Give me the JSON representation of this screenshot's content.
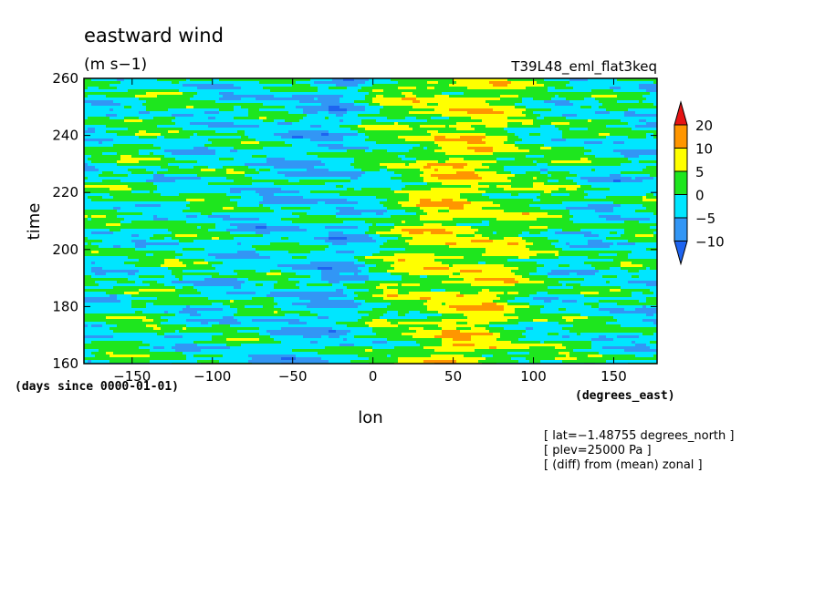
{
  "chart_data": {
    "type": "heatmap",
    "title": "eastward wind",
    "units": "(m s−1)",
    "experiment": "T39L48_eml_flat3keq",
    "xlabel": "lon",
    "x_units": "(degrees_east)",
    "ylabel": "time",
    "y_units": "(days since 0000-01-01)",
    "xlim": [
      -180,
      177
    ],
    "ylim": [
      160,
      260
    ],
    "x_ticks": [
      -150,
      -100,
      -50,
      0,
      50,
      100,
      150
    ],
    "x_tick_labels": [
      "−150",
      "−100",
      "−50",
      "0",
      "50",
      "100",
      "150"
    ],
    "y_ticks": [
      160,
      180,
      200,
      220,
      240,
      260
    ],
    "y_tick_labels": [
      "160",
      "180",
      "200",
      "220",
      "240",
      "260"
    ],
    "colorbar": {
      "levels": [
        -10,
        -5,
        0,
        5,
        10,
        20
      ],
      "labels": [
        "−10",
        "−5",
        "0",
        "5",
        "10",
        "20"
      ],
      "colors": [
        "#1e64f0",
        "#3296f5",
        "#00e6ff",
        "#1ee61e",
        "#ffff00",
        "#ff9600",
        "#e61414"
      ]
    },
    "notes": [
      "[ lat=−1.48755 degrees_north ]",
      "[ plev=25000 Pa ]",
      "[ (diff) from (mean) zonal ]"
    ],
    "pattern": {
      "description_free": true,
      "lon_profile": [
        [
          -180,
          -1.0
        ],
        [
          -150,
          0.2
        ],
        [
          -120,
          -0.5
        ],
        [
          -90,
          -1.6
        ],
        [
          -60,
          -2.4
        ],
        [
          -40,
          -3.0
        ],
        [
          -20,
          -4.2
        ],
        [
          -10,
          -2.5
        ],
        [
          0,
          0.5
        ],
        [
          15,
          3.0
        ],
        [
          30,
          5.5
        ],
        [
          50,
          7.0
        ],
        [
          70,
          6.0
        ],
        [
          90,
          3.0
        ],
        [
          110,
          0.5
        ],
        [
          140,
          -1.5
        ],
        [
          177,
          -1.0
        ]
      ]
    }
  }
}
